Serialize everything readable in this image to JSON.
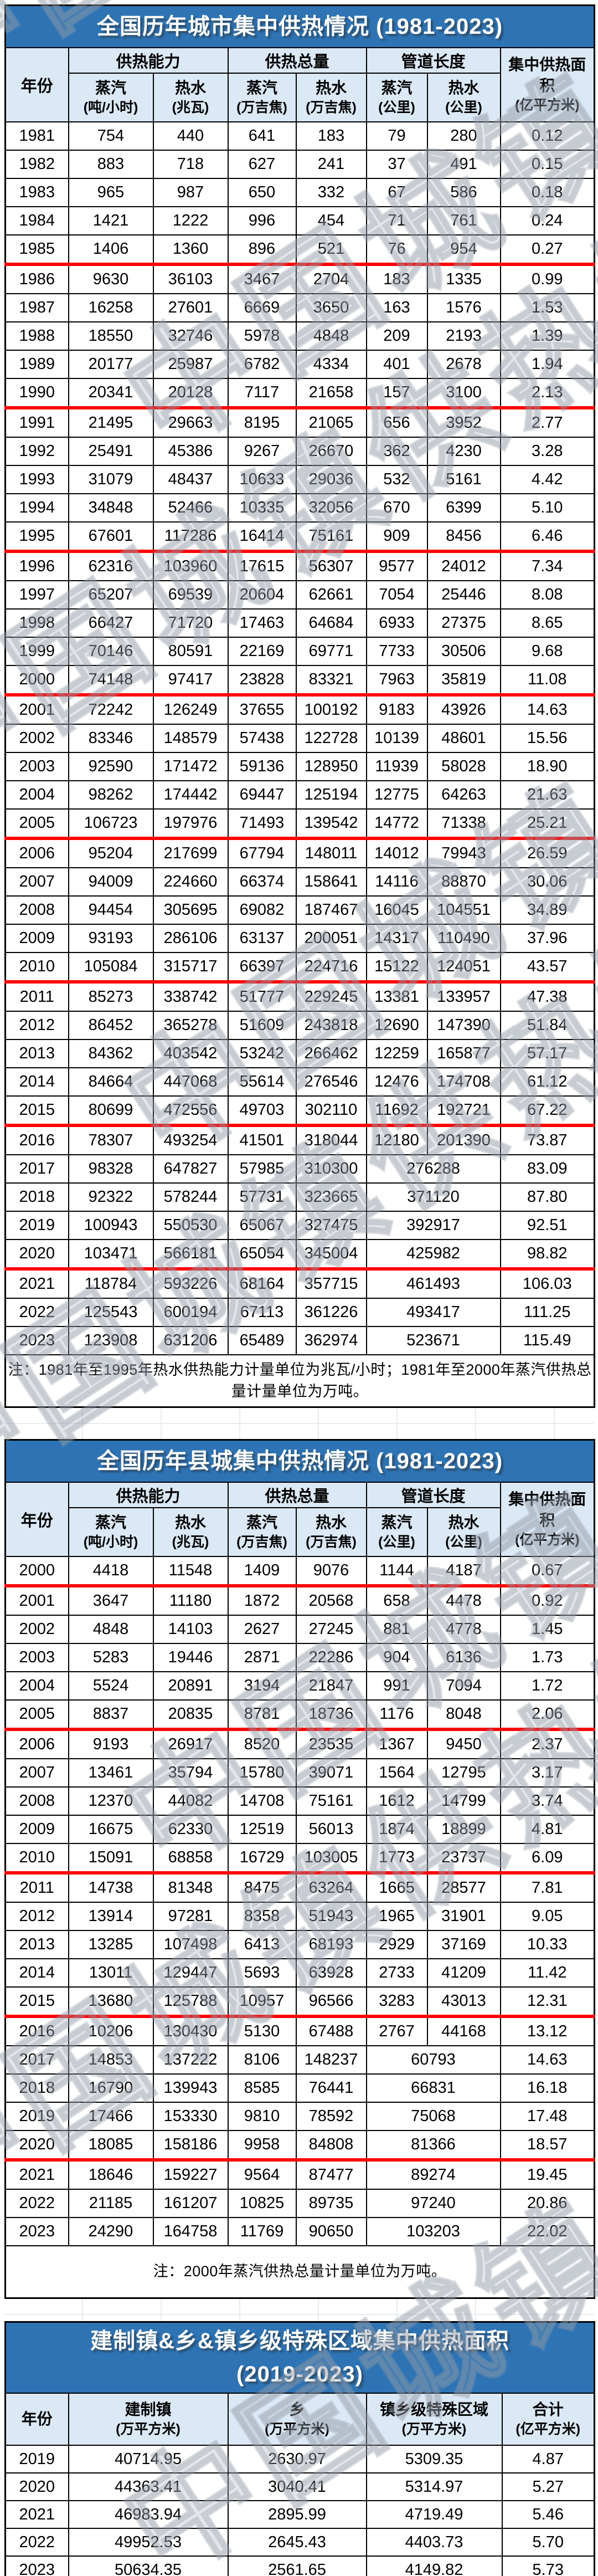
{
  "watermark": {
    "text": "中国城镇供热协会"
  },
  "colors": {
    "title_bar_bg": "#2e74b5",
    "title_text": "#ffffff",
    "header_bg": "#dbe8f5",
    "grid_border": "#000000",
    "five_year_divider_red": "#fe0000"
  },
  "city_table": {
    "title": "全国历年城市集中供热情况 (1981-2023)",
    "year_header": "年份",
    "group_headers": [
      "供热能力",
      "供热总量",
      "管道长度"
    ],
    "sub_headers": [
      {
        "label": "蒸汽",
        "unit": "(吨/小时)"
      },
      {
        "label": "热水",
        "unit": "(兆瓦)"
      },
      {
        "label": "蒸汽",
        "unit": "(万吉焦)"
      },
      {
        "label": "热水",
        "unit": "(万吉焦)"
      },
      {
        "label": "蒸汽",
        "unit": "(公里)"
      },
      {
        "label": "热水",
        "unit": "(公里)"
      }
    ],
    "area_header": {
      "label": "集中供热面积",
      "unit": "(亿平方米)"
    },
    "red_divider_after_years": [
      "1985",
      "1990",
      "1995",
      "2000",
      "2005",
      "2010",
      "2015",
      "2020"
    ],
    "note": "注：1981年至1995年热水供热能力计量单位为兆瓦/小时；1981年至2000年蒸汽供热总量计量单位为万吨。",
    "rows": [
      {
        "year": "1981",
        "values": [
          "754",
          "440",
          "641",
          "183",
          "79",
          "280",
          "0.12"
        ]
      },
      {
        "year": "1982",
        "values": [
          "883",
          "718",
          "627",
          "241",
          "37",
          "491",
          "0.15"
        ]
      },
      {
        "year": "1983",
        "values": [
          "965",
          "987",
          "650",
          "332",
          "67",
          "586",
          "0.18"
        ]
      },
      {
        "year": "1984",
        "values": [
          "1421",
          "1222",
          "996",
          "454",
          "71",
          "761",
          "0.24"
        ]
      },
      {
        "year": "1985",
        "values": [
          "1406",
          "1360",
          "896",
          "521",
          "76",
          "954",
          "0.27"
        ]
      },
      {
        "year": "1986",
        "values": [
          "9630",
          "36103",
          "3467",
          "2704",
          "183",
          "1335",
          "0.99"
        ]
      },
      {
        "year": "1987",
        "values": [
          "16258",
          "27601",
          "6669",
          "3650",
          "163",
          "1576",
          "1.53"
        ]
      },
      {
        "year": "1988",
        "values": [
          "18550",
          "32746",
          "5978",
          "4848",
          "209",
          "2193",
          "1.39"
        ]
      },
      {
        "year": "1989",
        "values": [
          "20177",
          "25987",
          "6782",
          "4334",
          "401",
          "2678",
          "1.94"
        ]
      },
      {
        "year": "1990",
        "values": [
          "20341",
          "20128",
          "7117",
          "21658",
          "157",
          "3100",
          "2.13"
        ]
      },
      {
        "year": "1991",
        "values": [
          "21495",
          "29663",
          "8195",
          "21065",
          "656",
          "3952",
          "2.77"
        ]
      },
      {
        "year": "1992",
        "values": [
          "25491",
          "45386",
          "9267",
          "26670",
          "362",
          "4230",
          "3.28"
        ]
      },
      {
        "year": "1993",
        "values": [
          "31079",
          "48437",
          "10633",
          "29036",
          "532",
          "5161",
          "4.42"
        ]
      },
      {
        "year": "1994",
        "values": [
          "34848",
          "52466",
          "10335",
          "32056",
          "670",
          "6399",
          "5.10"
        ]
      },
      {
        "year": "1995",
        "values": [
          "67601",
          "117286",
          "16414",
          "75161",
          "909",
          "8456",
          "6.46"
        ]
      },
      {
        "year": "1996",
        "values": [
          "62316",
          "103960",
          "17615",
          "56307",
          "9577",
          "24012",
          "7.34"
        ]
      },
      {
        "year": "1997",
        "values": [
          "65207",
          "69539",
          "20604",
          "62661",
          "7054",
          "25446",
          "8.08"
        ]
      },
      {
        "year": "1998",
        "values": [
          "66427",
          "71720",
          "17463",
          "64684",
          "6933",
          "27375",
          "8.65"
        ]
      },
      {
        "year": "1999",
        "values": [
          "70146",
          "80591",
          "22169",
          "69771",
          "7733",
          "30506",
          "9.68"
        ]
      },
      {
        "year": "2000",
        "values": [
          "74148",
          "97417",
          "23828",
          "83321",
          "7963",
          "35819",
          "11.08"
        ]
      },
      {
        "year": "2001",
        "values": [
          "72242",
          "126249",
          "37655",
          "100192",
          "9183",
          "43926",
          "14.63"
        ]
      },
      {
        "year": "2002",
        "values": [
          "83346",
          "148579",
          "57438",
          "122728",
          "10139",
          "48601",
          "15.56"
        ]
      },
      {
        "year": "2003",
        "values": [
          "92590",
          "171472",
          "59136",
          "128950",
          "11939",
          "58028",
          "18.90"
        ]
      },
      {
        "year": "2004",
        "values": [
          "98262",
          "174442",
          "69447",
          "125194",
          "12775",
          "64263",
          "21.63"
        ]
      },
      {
        "year": "2005",
        "values": [
          "106723",
          "197976",
          "71493",
          "139542",
          "14772",
          "71338",
          "25.21"
        ]
      },
      {
        "year": "2006",
        "values": [
          "95204",
          "217699",
          "67794",
          "148011",
          "14012",
          "79943",
          "26.59"
        ]
      },
      {
        "year": "2007",
        "values": [
          "94009",
          "224660",
          "66374",
          "158641",
          "14116",
          "88870",
          "30.06"
        ]
      },
      {
        "year": "2008",
        "values": [
          "94454",
          "305695",
          "69082",
          "187467",
          "16045",
          "104551",
          "34.89"
        ]
      },
      {
        "year": "2009",
        "values": [
          "93193",
          "286106",
          "63137",
          "200051",
          "14317",
          "110490",
          "37.96"
        ]
      },
      {
        "year": "2010",
        "values": [
          "105084",
          "315717",
          "66397",
          "224716",
          "15122",
          "124051",
          "43.57"
        ]
      },
      {
        "year": "2011",
        "values": [
          "85273",
          "338742",
          "51777",
          "229245",
          "13381",
          "133957",
          "47.38"
        ]
      },
      {
        "year": "2012",
        "values": [
          "86452",
          "365278",
          "51609",
          "243818",
          "12690",
          "147390",
          "51.84"
        ]
      },
      {
        "year": "2013",
        "values": [
          "84362",
          "403542",
          "53242",
          "266462",
          "12259",
          "165877",
          "57.17"
        ]
      },
      {
        "year": "2014",
        "values": [
          "84664",
          "447068",
          "55614",
          "276546",
          "12476",
          "174708",
          "61.12"
        ]
      },
      {
        "year": "2015",
        "values": [
          "80699",
          "472556",
          "49703",
          "302110",
          "11692",
          "192721",
          "67.22"
        ]
      },
      {
        "year": "2016",
        "values": [
          "78307",
          "493254",
          "41501",
          "318044",
          "12180",
          "201390",
          "73.87"
        ]
      },
      {
        "year": "2017",
        "pipeline_merged": true,
        "values": [
          "98328",
          "647827",
          "57985",
          "310300",
          "276288",
          "83.09"
        ]
      },
      {
        "year": "2018",
        "pipeline_merged": true,
        "values": [
          "92322",
          "578244",
          "57731",
          "323665",
          "371120",
          "87.80"
        ]
      },
      {
        "year": "2019",
        "pipeline_merged": true,
        "values": [
          "100943",
          "550530",
          "65067",
          "327475",
          "392917",
          "92.51"
        ]
      },
      {
        "year": "2020",
        "pipeline_merged": true,
        "values": [
          "103471",
          "566181",
          "65054",
          "345004",
          "425982",
          "98.82"
        ]
      },
      {
        "year": "2021",
        "pipeline_merged": true,
        "values": [
          "118784",
          "593226",
          "68164",
          "357715",
          "461493",
          "106.03"
        ]
      },
      {
        "year": "2022",
        "pipeline_merged": true,
        "values": [
          "125543",
          "600194",
          "67113",
          "361226",
          "493417",
          "111.25"
        ]
      },
      {
        "year": "2023",
        "pipeline_merged": true,
        "values": [
          "123908",
          "631206",
          "65489",
          "362974",
          "523671",
          "115.49"
        ]
      }
    ]
  },
  "county_table": {
    "title": "全国历年县城集中供热情况 (1981-2023)",
    "year_header": "年份",
    "group_headers": [
      "供热能力",
      "供热总量",
      "管道长度"
    ],
    "sub_headers": [
      {
        "label": "蒸汽",
        "unit": "(吨/小时)"
      },
      {
        "label": "热水",
        "unit": "(兆瓦)"
      },
      {
        "label": "蒸汽",
        "unit": "(万吉焦)"
      },
      {
        "label": "热水",
        "unit": "(万吉焦)"
      },
      {
        "label": "蒸汽",
        "unit": "(公里)"
      },
      {
        "label": "热水",
        "unit": "(公里)"
      }
    ],
    "area_header": {
      "label": "集中供热面积",
      "unit": "(亿平方米)"
    },
    "red_divider_after_years": [
      "2000",
      "2005",
      "2010",
      "2015",
      "2020"
    ],
    "note": "注：2000年蒸汽供热总量计量单位为万吨。",
    "rows": [
      {
        "year": "2000",
        "values": [
          "4418",
          "11548",
          "1409",
          "9076",
          "1144",
          "4187",
          "0.67"
        ]
      },
      {
        "year": "2001",
        "values": [
          "3647",
          "11180",
          "1872",
          "20568",
          "658",
          "4478",
          "0.92"
        ]
      },
      {
        "year": "2002",
        "values": [
          "4848",
          "14103",
          "2627",
          "27245",
          "881",
          "4778",
          "1.45"
        ]
      },
      {
        "year": "2003",
        "values": [
          "5283",
          "19446",
          "2871",
          "22286",
          "904",
          "6136",
          "1.73"
        ]
      },
      {
        "year": "2004",
        "values": [
          "5524",
          "20891",
          "3194",
          "21847",
          "991",
          "7094",
          "1.72"
        ]
      },
      {
        "year": "2005",
        "values": [
          "8837",
          "20835",
          "8781",
          "18736",
          "1176",
          "8048",
          "2.06"
        ]
      },
      {
        "year": "2006",
        "values": [
          "9193",
          "26917",
          "8520",
          "23535",
          "1367",
          "9450",
          "2.37"
        ]
      },
      {
        "year": "2007",
        "values": [
          "13461",
          "35794",
          "15780",
          "39071",
          "1564",
          "12795",
          "3.17"
        ]
      },
      {
        "year": "2008",
        "values": [
          "12370",
          "44082",
          "14708",
          "75161",
          "1612",
          "14799",
          "3.74"
        ]
      },
      {
        "year": "2009",
        "values": [
          "16675",
          "62330",
          "12519",
          "56013",
          "1874",
          "18899",
          "4.81"
        ]
      },
      {
        "year": "2010",
        "values": [
          "15091",
          "68858",
          "16729",
          "103005",
          "1773",
          "23737",
          "6.09"
        ]
      },
      {
        "year": "2011",
        "values": [
          "14738",
          "81348",
          "8475",
          "63264",
          "1665",
          "28577",
          "7.81"
        ]
      },
      {
        "year": "2012",
        "values": [
          "13914",
          "97281",
          "8358",
          "51943",
          "1965",
          "31901",
          "9.05"
        ]
      },
      {
        "year": "2013",
        "values": [
          "13285",
          "107498",
          "6413",
          "68193",
          "2929",
          "37169",
          "10.33"
        ]
      },
      {
        "year": "2014",
        "values": [
          "13011",
          "129447",
          "5693",
          "63928",
          "2733",
          "41209",
          "11.42"
        ]
      },
      {
        "year": "2015",
        "values": [
          "13680",
          "125788",
          "10957",
          "96566",
          "3283",
          "43013",
          "12.31"
        ]
      },
      {
        "year": "2016",
        "values": [
          "10206",
          "130430",
          "5130",
          "67488",
          "2767",
          "44168",
          "13.12"
        ]
      },
      {
        "year": "2017",
        "pipeline_merged": true,
        "values": [
          "14853",
          "137222",
          "8106",
          "148237",
          "60793",
          "14.63"
        ]
      },
      {
        "year": "2018",
        "pipeline_merged": true,
        "values": [
          "16790",
          "139943",
          "8585",
          "76441",
          "66831",
          "16.18"
        ]
      },
      {
        "year": "2019",
        "pipeline_merged": true,
        "values": [
          "17466",
          "153330",
          "9810",
          "78592",
          "75068",
          "17.48"
        ]
      },
      {
        "year": "2020",
        "pipeline_merged": true,
        "values": [
          "18085",
          "158186",
          "9958",
          "84808",
          "81366",
          "18.57"
        ]
      },
      {
        "year": "2021",
        "pipeline_merged": true,
        "values": [
          "18646",
          "159227",
          "9564",
          "87477",
          "89274",
          "19.45"
        ]
      },
      {
        "year": "2022",
        "pipeline_merged": true,
        "values": [
          "21185",
          "161207",
          "10825",
          "89735",
          "97240",
          "20.86"
        ]
      },
      {
        "year": "2023",
        "pipeline_merged": true,
        "values": [
          "24290",
          "164758",
          "11769",
          "90650",
          "103203",
          "22.02"
        ]
      }
    ]
  },
  "township_table": {
    "title_line1": "建制镇&乡&镇乡级特殊区域集中供热面积",
    "title_line2": "(2019-2023)",
    "columns": [
      {
        "label": "年份",
        "unit": ""
      },
      {
        "label": "建制镇",
        "unit": "(万平方米)"
      },
      {
        "label": "乡",
        "unit": "(万平方米)"
      },
      {
        "label": "镇乡级特殊区域",
        "unit": "(万平方米)"
      },
      {
        "label": "合计",
        "unit": "(亿平方米)"
      }
    ],
    "rows": [
      {
        "year": "2019",
        "values": [
          "40714.95",
          "2630.97",
          "5309.35",
          "4.87"
        ]
      },
      {
        "year": "2020",
        "values": [
          "44363.41",
          "3040.41",
          "5314.97",
          "5.27"
        ]
      },
      {
        "year": "2021",
        "values": [
          "46983.94",
          "2895.99",
          "4719.49",
          "5.46"
        ]
      },
      {
        "year": "2022",
        "values": [
          "49952.53",
          "2645.43",
          "4403.73",
          "5.70"
        ]
      },
      {
        "year": "2023",
        "values": [
          "50634.35",
          "2561.65",
          "4149.82",
          "5.73"
        ]
      }
    ]
  }
}
